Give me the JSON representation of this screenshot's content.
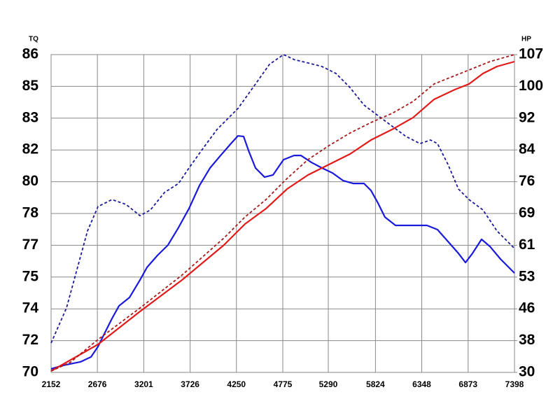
{
  "chart_data": {
    "type": "line",
    "ylabel": "TQ",
    "y2label": "HP",
    "grid": true,
    "xlim": [
      2152,
      7398
    ],
    "xticks": [
      2152,
      2676,
      3201,
      3726,
      4250,
      4775,
      5290,
      5824,
      6348,
      6873,
      7398
    ],
    "ylim": [
      70.4,
      86.4
    ],
    "yticks": [
      {
        "value": 70.4,
        "label": "70"
      },
      72,
      {
        "value": 73.6,
        "label": "74"
      },
      {
        "value": 75.2,
        "label": "75"
      },
      {
        "value": 76.8,
        "label": "77"
      },
      {
        "value": 78.4,
        "label": "78"
      },
      80,
      {
        "value": 81.6,
        "label": "82"
      },
      {
        "value": 83.2,
        "label": "83"
      },
      {
        "value": 84.8,
        "label": "85"
      },
      {
        "value": 86.4,
        "label": "86"
      }
    ],
    "y2lim": [
      30.1,
      107.3
    ],
    "y2ticks": [
      {
        "value": 30.1,
        "label": "30"
      },
      {
        "value": 37.82,
        "label": "38"
      },
      {
        "value": 45.54,
        "label": "46"
      },
      {
        "value": 53.26,
        "label": "53"
      },
      {
        "value": 60.98,
        "label": "61"
      },
      {
        "value": 68.7,
        "label": "69"
      },
      {
        "value": 76.42,
        "label": "76"
      },
      {
        "value": 84.14,
        "label": "84"
      },
      {
        "value": 91.86,
        "label": "92"
      },
      {
        "value": 99.58,
        "label": "100"
      },
      {
        "value": 107.3,
        "label": "107"
      }
    ],
    "series": [
      {
        "color": "#1a1adc",
        "style": "solid",
        "x": [
          2152,
          2287,
          2406,
          2485,
          2604,
          2683,
          2762,
          2841,
          2921,
          3039,
          3158,
          3238,
          3356,
          3475,
          3594,
          3713,
          3832,
          3951,
          4070,
          4188,
          4268,
          4331,
          4387,
          4466,
          4569,
          4664,
          4783,
          4902,
          4981,
          5100,
          5219,
          5338,
          5456,
          5575,
          5694,
          5773,
          5852,
          5931,
          6051,
          6169,
          6288,
          6407,
          6526,
          6645,
          6764,
          6843,
          6922,
          7025,
          7120,
          7239,
          7398
        ],
        "values": [
          70.58,
          70.75,
          70.86,
          70.93,
          71.18,
          71.7,
          72.41,
          73.11,
          73.75,
          74.17,
          75.05,
          75.69,
          76.29,
          76.81,
          77.69,
          78.65,
          79.81,
          80.69,
          81.32,
          81.92,
          82.31,
          82.28,
          81.57,
          80.69,
          80.23,
          80.34,
          81.11,
          81.32,
          81.32,
          80.97,
          80.69,
          80.44,
          80.06,
          79.91,
          79.91,
          79.56,
          78.93,
          78.22,
          77.8,
          77.8,
          77.8,
          77.8,
          77.59,
          76.99,
          76.39,
          75.93,
          76.39,
          77.1,
          76.74,
          76.11,
          75.4
        ]
      },
      {
        "color": "#1a1a9a",
        "style": "dashed",
        "x": [
          2152,
          2326,
          2445,
          2564,
          2683,
          2841,
          2999,
          3158,
          3277,
          3436,
          3594,
          3713,
          3872,
          4030,
          4268,
          4466,
          4624,
          4783,
          4902,
          5060,
          5219,
          5377,
          5536,
          5694,
          5852,
          6011,
          6169,
          6328,
          6447,
          6526,
          6645,
          6764,
          6883,
          7041,
          7200,
          7398
        ],
        "values": [
          71.88,
          73.64,
          75.58,
          77.52,
          78.75,
          79.1,
          78.86,
          78.29,
          78.58,
          79.46,
          79.91,
          80.69,
          81.68,
          82.63,
          83.69,
          84.92,
          85.91,
          86.4,
          86.15,
          85.98,
          85.8,
          85.45,
          84.74,
          83.86,
          83.33,
          82.8,
          82.28,
          81.92,
          82.1,
          81.92,
          80.87,
          79.63,
          79.1,
          78.58,
          77.52,
          76.64
        ]
      },
      {
        "color": "#e21a1a",
        "style": "solid",
        "axis": "y2",
        "x": [
          2152,
          2683,
          3158,
          3634,
          4109,
          4347,
          4585,
          4823,
          5060,
          5298,
          5536,
          5773,
          6011,
          6249,
          6487,
          6724,
          6883,
          7041,
          7200,
          7398
        ],
        "values": [
          30.44,
          36.9,
          44.89,
          52.55,
          61.05,
          66.15,
          69.89,
          74.65,
          78.05,
          80.6,
          83.15,
          86.55,
          89.1,
          91.99,
          96.42,
          98.82,
          100.16,
          102.71,
          104.41,
          105.6
        ]
      },
      {
        "color": "#a81a1a",
        "style": "dashed",
        "axis": "y2",
        "x": [
          2152,
          2366,
          2683,
          3158,
          3634,
          4109,
          4347,
          4585,
          4823,
          5060,
          5298,
          5536,
          5773,
          6011,
          6249,
          6487,
          6724,
          6883,
          7120,
          7398
        ],
        "values": [
          30.44,
          32.48,
          38.09,
          45.74,
          53.74,
          62.75,
          67.85,
          72.1,
          77.2,
          81.79,
          85.19,
          88.25,
          90.8,
          93.01,
          95.91,
          100.16,
          102.2,
          103.56,
          105.6,
          107.3
        ]
      }
    ]
  }
}
